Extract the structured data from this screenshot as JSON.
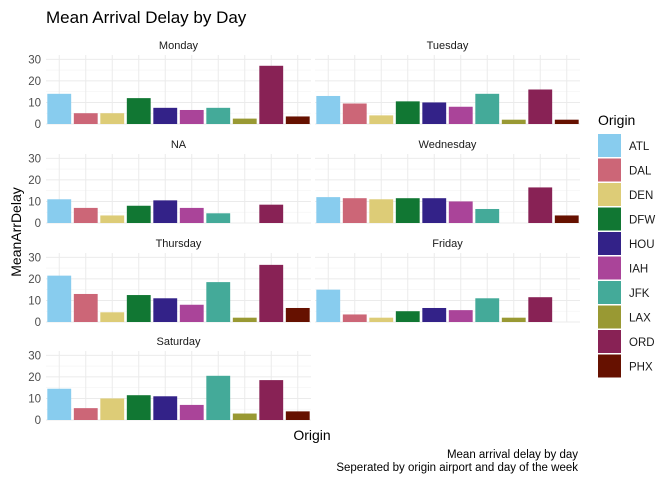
{
  "chart_data": {
    "type": "bar",
    "title": "Mean Arrival Delay by Day",
    "xlabel": "Origin",
    "ylabel": "MeanArrDelay",
    "ylim": [
      0,
      32
    ],
    "yticks": [
      0,
      10,
      20,
      30
    ],
    "grid": true,
    "legend": {
      "title": "Origin",
      "position": "right",
      "items": [
        {
          "label": "ATL",
          "color": "#88CCEE"
        },
        {
          "label": "DAL",
          "color": "#CC6677"
        },
        {
          "label": "DEN",
          "color": "#DDCC77"
        },
        {
          "label": "DFW",
          "color": "#117733"
        },
        {
          "label": "HOU",
          "color": "#332288"
        },
        {
          "label": "IAH",
          "color": "#AA4499"
        },
        {
          "label": "JFK",
          "color": "#44AA99"
        },
        {
          "label": "LAX",
          "color": "#999933"
        },
        {
          "label": "ORD",
          "color": "#882255"
        },
        {
          "label": "PHX",
          "color": "#661100"
        }
      ]
    },
    "categories": [
      "ATL",
      "DAL",
      "DEN",
      "DFW",
      "HOU",
      "IAH",
      "JFK",
      "LAX",
      "ORD",
      "PHX"
    ],
    "panels": [
      {
        "label": "Monday",
        "values": [
          14,
          5,
          5,
          12,
          7.5,
          6.5,
          7.5,
          2.5,
          27,
          3.5
        ]
      },
      {
        "label": "Tuesday",
        "values": [
          13,
          9.5,
          4,
          10.5,
          10,
          8,
          14,
          2,
          16,
          2
        ]
      },
      {
        "label": "NA",
        "values": [
          11,
          7,
          3.5,
          8,
          10.5,
          7,
          4.5,
          null,
          8.5,
          null
        ]
      },
      {
        "label": "Wednesday",
        "values": [
          12,
          11.5,
          11,
          11.5,
          11.5,
          10,
          6.5,
          null,
          16.5,
          3.5
        ]
      },
      {
        "label": "Thursday",
        "values": [
          21.5,
          13,
          4.5,
          12.5,
          11,
          8,
          18.5,
          2,
          26.5,
          6.5
        ]
      },
      {
        "label": "Friday",
        "values": [
          15,
          3.5,
          2,
          5,
          6.5,
          5.5,
          11,
          2,
          11.5,
          null
        ]
      },
      {
        "label": "Saturday",
        "values": [
          14.5,
          5.5,
          10,
          11.5,
          11,
          7,
          20.5,
          3,
          18.5,
          4
        ]
      }
    ],
    "caption": [
      "Mean arrival delay by day",
      "Seperated by origin airport and day of the week"
    ]
  }
}
